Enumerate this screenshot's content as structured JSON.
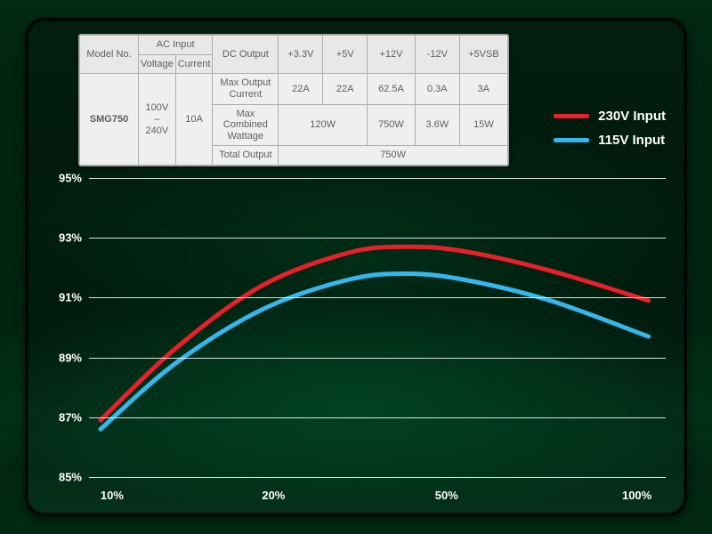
{
  "background": {
    "outer_top": "#012a12",
    "outer_mid": "#001b0a",
    "panel_border_radius": 22
  },
  "table": {
    "bg": "#eef0ef",
    "border": "#adadad",
    "text_color": "#5b5f5c",
    "fontsize": 11,
    "headers": {
      "model_no": "Model No.",
      "ac_input": "AC Input",
      "voltage": "Voltage",
      "current": "Current",
      "dc_output": "DC Output",
      "v33": "+3.3V",
      "v5": "+5V",
      "v12": "+12V",
      "vn12": "-12V",
      "v5sb": "+5VSB"
    },
    "model": "SMG750",
    "voltage_range": "100V\n–\n240V",
    "ac_current": "10A",
    "rows": {
      "max_out_current": {
        "label": "Max Output\nCurrent",
        "v33": "22A",
        "v5": "22A",
        "v12": "62.5A",
        "vn12": "0.3A",
        "v5sb": "3A"
      },
      "max_combined": {
        "label": "Max\nCombined\nWattage",
        "v33_5": "120W",
        "v12": "750W",
        "vn12": "3.6W",
        "v5sb": "15W"
      },
      "total_output": {
        "label": "Total Output",
        "value": "750W"
      }
    }
  },
  "legend": {
    "fontsize": 15,
    "items": [
      {
        "label": "230V Input",
        "color": "#e8202a"
      },
      {
        "label": "115V Input",
        "color": "#36b7ec"
      }
    ]
  },
  "chart": {
    "type": "line",
    "line_width": 5,
    "grid_color": "#ffffff",
    "tick_color": "#ffffff",
    "tick_fontsize": 13,
    "y": {
      "min": 85,
      "max": 95,
      "ticks": [
        85,
        87,
        89,
        91,
        93,
        95
      ],
      "suffix": "%"
    },
    "x": {
      "min": 0,
      "max": 100,
      "ticks": [
        {
          "pos": 4,
          "label": "10%"
        },
        {
          "pos": 32,
          "label": "20%"
        },
        {
          "pos": 62,
          "label": "50%"
        },
        {
          "pos": 95,
          "label": "100%"
        }
      ]
    },
    "series": [
      {
        "name": "230V",
        "color": "#e8202a",
        "points": [
          {
            "x": 2,
            "y": 86.9
          },
          {
            "x": 15,
            "y": 89.3
          },
          {
            "x": 30,
            "y": 91.4
          },
          {
            "x": 45,
            "y": 92.5
          },
          {
            "x": 55,
            "y": 92.7
          },
          {
            "x": 65,
            "y": 92.55
          },
          {
            "x": 80,
            "y": 91.9
          },
          {
            "x": 97,
            "y": 90.9
          }
        ]
      },
      {
        "name": "115V",
        "color": "#36b7ec",
        "points": [
          {
            "x": 2,
            "y": 86.6
          },
          {
            "x": 15,
            "y": 88.8
          },
          {
            "x": 30,
            "y": 90.6
          },
          {
            "x": 45,
            "y": 91.6
          },
          {
            "x": 55,
            "y": 91.8
          },
          {
            "x": 65,
            "y": 91.6
          },
          {
            "x": 80,
            "y": 90.9
          },
          {
            "x": 97,
            "y": 89.7
          }
        ]
      }
    ]
  }
}
